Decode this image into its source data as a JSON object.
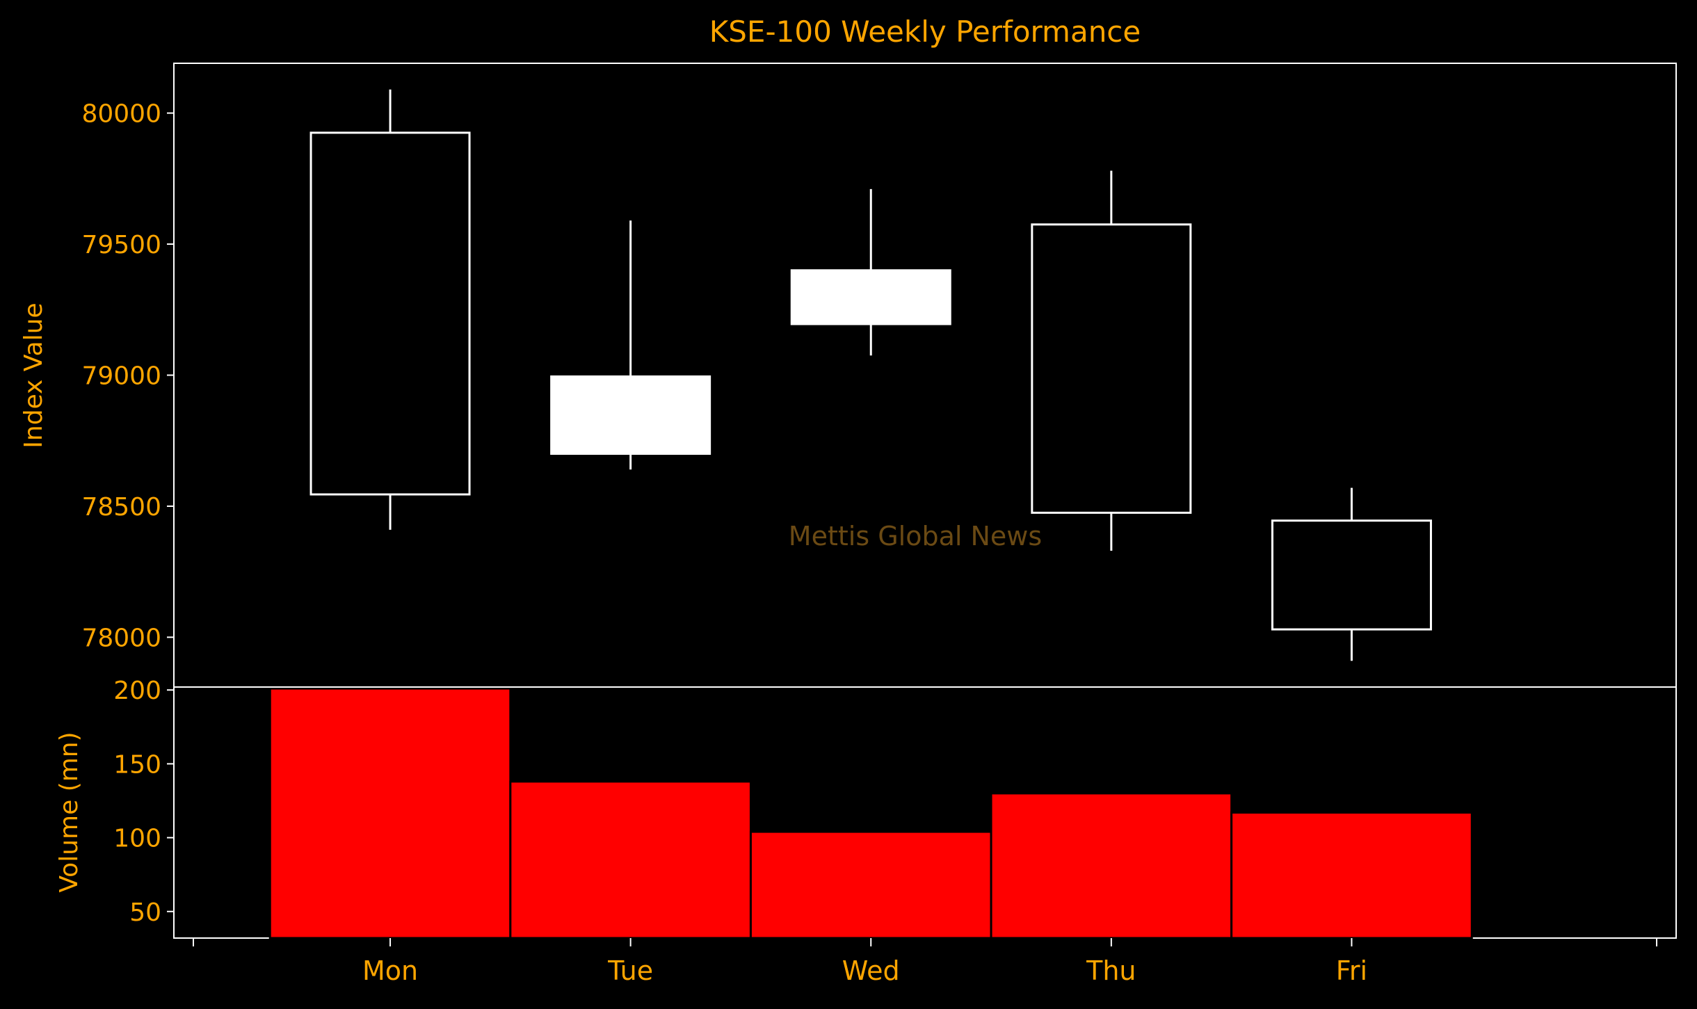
{
  "chart_data": {
    "type": "candlestick",
    "title": "KSE-100 Weekly Performance",
    "watermark": "Mettis Global News",
    "categories": [
      "Mon",
      "Tue",
      "Wed",
      "Thu",
      "Fri"
    ],
    "price": {
      "ylabel": "Index Value",
      "ylim": [
        77810,
        80190
      ],
      "yticks": [
        78000,
        78500,
        79000,
        79500,
        80000
      ],
      "candles": [
        {
          "open": 78545,
          "close": 79925,
          "high": 80090,
          "low": 78410,
          "style": "hollow"
        },
        {
          "open": 78995,
          "close": 78700,
          "high": 79590,
          "low": 78640,
          "style": "filled"
        },
        {
          "open": 79400,
          "close": 79195,
          "high": 79710,
          "low": 79075,
          "style": "filled"
        },
        {
          "open": 78475,
          "close": 79575,
          "high": 79780,
          "low": 78330,
          "style": "hollow"
        },
        {
          "open": 78030,
          "close": 78445,
          "high": 78570,
          "low": 77910,
          "style": "hollow"
        }
      ]
    },
    "volume": {
      "ylabel": "Volume (mn)",
      "ylim": [
        32,
        202
      ],
      "yticks": [
        50,
        100,
        150,
        200
      ],
      "values": [
        201,
        138,
        104,
        130,
        117
      ]
    },
    "grid": false,
    "colors": {
      "background": "#000000",
      "axes": "#ffffff",
      "text": "#ffa500",
      "candle": "#ffffff",
      "volume_bar": "#ff0000",
      "watermark": "#6b4a14"
    }
  }
}
